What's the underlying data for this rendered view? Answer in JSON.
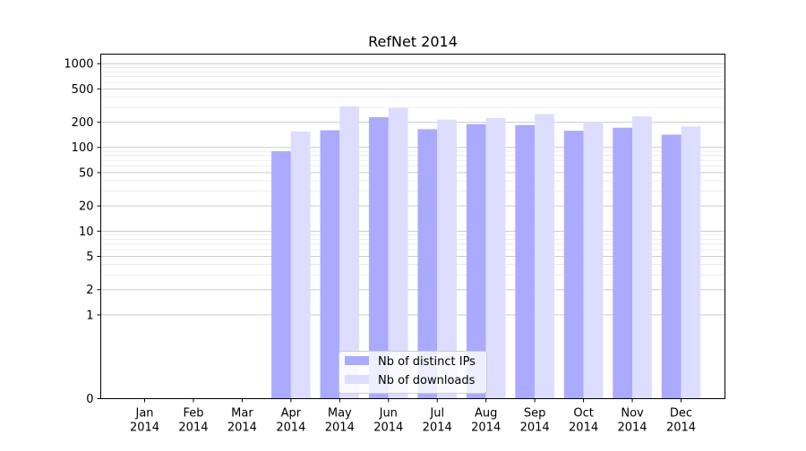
{
  "chart_data": {
    "type": "bar",
    "title": "RefNet 2014",
    "xlabel": "",
    "ylabel": "",
    "yscale": "symlog",
    "ylim": [
      0,
      1300
    ],
    "yticks": [
      0,
      1,
      2,
      5,
      10,
      20,
      50,
      100,
      200,
      500,
      1000
    ],
    "grid": true,
    "legend_position": "lower-center",
    "categories": [
      "Jan\n2014",
      "Feb\n2014",
      "Mar\n2014",
      "Apr\n2014",
      "May\n2014",
      "Jun\n2014",
      "Jul\n2014",
      "Aug\n2014",
      "Sep\n2014",
      "Oct\n2014",
      "Nov\n2014",
      "Dec\n2014"
    ],
    "series": [
      {
        "name": "Nb of distinct IPs",
        "color": "#aaaaff",
        "values": [
          0,
          0,
          0,
          90,
          160,
          230,
          165,
          190,
          185,
          158,
          172,
          142
        ]
      },
      {
        "name": "Nb of downloads",
        "color": "#ddddff",
        "values": [
          0,
          0,
          0,
          155,
          310,
          295,
          215,
          225,
          250,
          200,
          235,
          178
        ]
      }
    ]
  }
}
